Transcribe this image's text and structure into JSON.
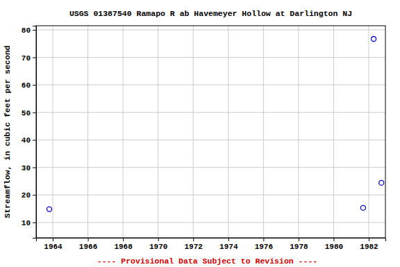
{
  "chart_data": {
    "type": "scatter",
    "title": "USGS 01387540 Ramapo R ab Havemeyer Hollow at Darlington NJ",
    "y_label": "Streamflow, in cubic feet per second",
    "footnote": "---- Provisional Data Subject to Revision ----",
    "x": [
      1963.8,
      1981.68,
      1982.28,
      1982.72
    ],
    "y": [
      14.8,
      15.3,
      76.7,
      24.4
    ],
    "color": "#0000cc",
    "marker": "open-circle",
    "xlim": [
      1963.05,
      1982.95
    ],
    "xticks": [
      1964,
      1966,
      1968,
      1970,
      1972,
      1974,
      1976,
      1978,
      1980,
      1982
    ],
    "ylim": [
      4.4,
      81.5
    ],
    "yticks": [
      10,
      20,
      30,
      40,
      50,
      60,
      70,
      80
    ],
    "grid": true
  }
}
